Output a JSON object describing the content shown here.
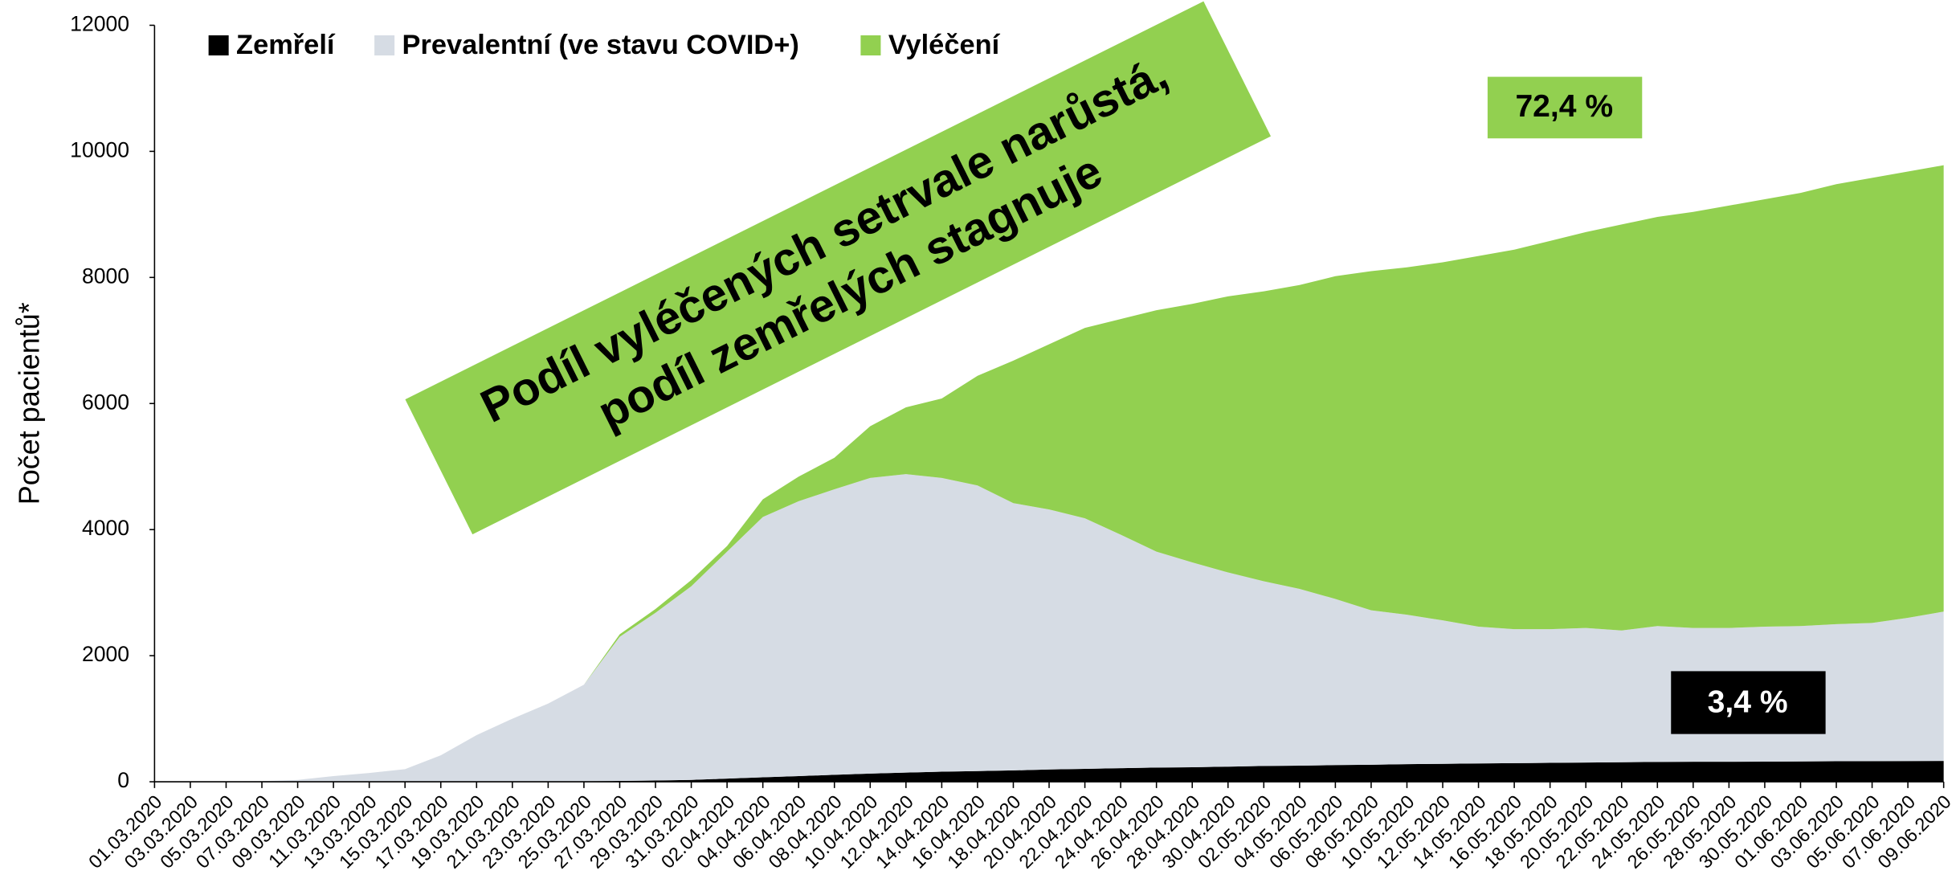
{
  "chart_data": {
    "type": "stacked_area",
    "ylabel": "Počet pacientů*",
    "annotations": [
      "Podíl vyléčených setrvale narůstá,",
      "podíl zemřelých stagnuje",
      "72,4 %",
      "3,4 %"
    ],
    "categories": [
      "01.03.2020",
      "03.03.2020",
      "05.03.2020",
      "07.03.2020",
      "09.03.2020",
      "11.03.2020",
      "13.03.2020",
      "15.03.2020",
      "17.03.2020",
      "19.03.2020",
      "21.03.2020",
      "23.03.2020",
      "25.03.2020",
      "27.03.2020",
      "29.03.2020",
      "31.03.2020",
      "02.04.2020",
      "04.04.2020",
      "06.04.2020",
      "08.04.2020",
      "10.04.2020",
      "12.04.2020",
      "14.04.2020",
      "16.04.2020",
      "18.04.2020",
      "20.04.2020",
      "22.04.2020",
      "24.04.2020",
      "26.04.2020",
      "28.04.2020",
      "30.04.2020",
      "02.05.2020",
      "04.05.2020",
      "06.05.2020",
      "08.05.2020",
      "10.05.2020",
      "12.05.2020",
      "14.05.2020",
      "16.05.2020",
      "18.05.2020",
      "20.05.2020",
      "22.05.2020",
      "24.05.2020",
      "26.05.2020",
      "28.05.2020",
      "30.05.2020",
      "01.06.2020",
      "03.06.2020",
      "05.06.2020",
      "07.06.2020",
      "09.06.2020"
    ],
    "series": [
      {
        "name": "Zemřelí",
        "color": "#000000",
        "values": [
          0,
          0,
          0,
          0,
          0,
          0,
          0,
          0,
          1,
          2,
          3,
          5,
          9,
          13,
          20,
          30,
          50,
          70,
          90,
          110,
          130,
          145,
          160,
          170,
          180,
          195,
          205,
          215,
          225,
          230,
          240,
          250,
          255,
          265,
          270,
          280,
          285,
          290,
          295,
          300,
          305,
          310,
          315,
          317,
          318,
          320,
          322,
          325,
          327,
          329,
          331
        ]
      },
      {
        "name": "Prevalentní (ve stavu COVID+)",
        "color": "#d6dce4",
        "values": [
          0,
          3,
          5,
          10,
          30,
          90,
          140,
          200,
          419,
          738,
          997,
          1235,
          1531,
          2287,
          2660,
          3070,
          3600,
          4130,
          4360,
          4530,
          4690,
          4735,
          4660,
          4530,
          4240,
          4125,
          3975,
          3705,
          3425,
          3250,
          3080,
          2930,
          2805,
          2635,
          2450,
          2370,
          2275,
          2170,
          2125,
          2120,
          2135,
          2090,
          2155,
          2123,
          2122,
          2140,
          2148,
          2175,
          2193,
          2271,
          2369
        ]
      },
      {
        "name": "Vyléčení",
        "color": "#92d050",
        "values": [
          0,
          0,
          0,
          0,
          0,
          0,
          0,
          0,
          0,
          0,
          0,
          0,
          0,
          40,
          60,
          100,
          90,
          280,
          390,
          500,
          820,
          1060,
          1260,
          1740,
          2260,
          2620,
          3020,
          3420,
          3830,
          4100,
          4380,
          4600,
          4820,
          5120,
          5380,
          5510,
          5680,
          5880,
          6020,
          6160,
          6280,
          6440,
          6490,
          6600,
          6700,
          6780,
          6870,
          6980,
          7060,
          7080,
          7080
        ]
      }
    ],
    "ylim": [
      0,
      12000
    ],
    "yticks": [
      0,
      2000,
      4000,
      6000,
      8000,
      10000,
      12000
    ],
    "grid": false
  }
}
